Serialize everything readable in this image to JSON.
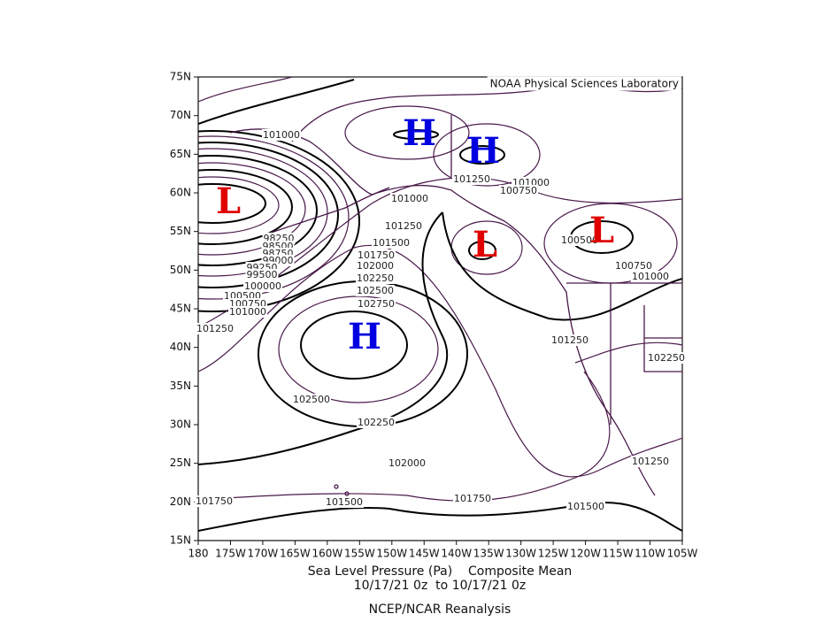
{
  "credit": "NOAA Physical Sciences Laboratory",
  "lat_ticks": [
    "75N",
    "70N",
    "65N",
    "60N",
    "55N",
    "50N",
    "45N",
    "40N",
    "35N",
    "30N",
    "25N",
    "20N",
    "15N"
  ],
  "lon_ticks": [
    "180",
    "175W",
    "170W",
    "165W",
    "160W",
    "155W",
    "150W",
    "145W",
    "140W",
    "135W",
    "130W",
    "125W",
    "120W",
    "115W",
    "110W",
    "105W"
  ],
  "contour_labels": [
    "101000",
    "101250",
    "101000",
    "100750",
    "101000",
    "101250",
    "101500",
    "101750",
    "102000",
    "102250",
    "102500",
    "102750",
    "98250",
    "98500",
    "98750",
    "99000",
    "99250",
    "99500",
    "100000",
    "100500",
    "100750",
    "101000",
    "101250",
    "101250",
    "102250",
    "102500",
    "102250",
    "102000",
    "101750",
    "101750",
    "101500",
    "101500",
    "101250",
    "100500",
    "100750",
    "101000"
  ],
  "centers": [
    "H",
    "H",
    "H",
    "L",
    "L",
    "L"
  ],
  "caption": {
    "line1": "Sea Level Pressure (Pa)    Composite Mean",
    "line2": "10/17/21 0z  to 10/17/21 0z",
    "source": "NCEP/NCAR Reanalysis"
  }
}
